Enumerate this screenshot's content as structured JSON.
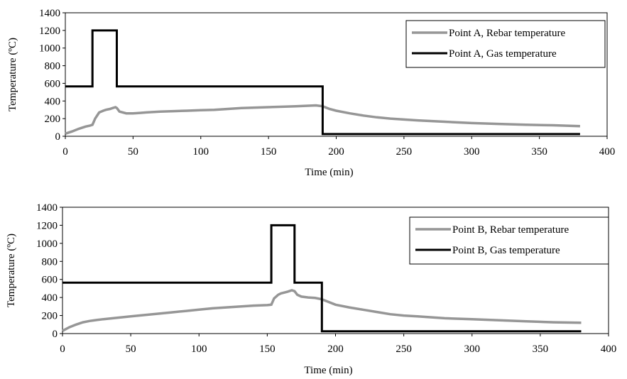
{
  "chart_data": [
    {
      "type": "line",
      "xlabel": "Time (min)",
      "ylabel": "Temperature (ºC)",
      "xlim": [
        0,
        400
      ],
      "ylim": [
        0,
        1400
      ],
      "xticks": [
        0,
        50,
        100,
        150,
        200,
        250,
        300,
        350,
        400
      ],
      "yticks": [
        0,
        200,
        400,
        600,
        800,
        1000,
        1200,
        1400
      ],
      "grid": false,
      "legend_position": "top-right",
      "series": [
        {
          "name": "Point A, Rebar temperature",
          "color": "#969696",
          "x": [
            0,
            5,
            10,
            15,
            18,
            20,
            22,
            25,
            28,
            30,
            33,
            35,
            37,
            38,
            40,
            45,
            50,
            55,
            60,
            70,
            80,
            90,
            100,
            110,
            120,
            130,
            140,
            150,
            160,
            170,
            185,
            190,
            195,
            200,
            210,
            220,
            230,
            240,
            250,
            260,
            280,
            300,
            320,
            340,
            360,
            380
          ],
          "y": [
            30,
            55,
            85,
            110,
            120,
            130,
            200,
            270,
            290,
            300,
            310,
            320,
            330,
            320,
            280,
            260,
            260,
            265,
            270,
            280,
            285,
            290,
            295,
            300,
            310,
            320,
            325,
            330,
            335,
            340,
            350,
            340,
            310,
            290,
            260,
            235,
            215,
            200,
            190,
            180,
            165,
            150,
            140,
            130,
            125,
            115
          ]
        },
        {
          "name": "Point A, Gas temperature",
          "color": "#000000",
          "x": [
            0,
            20,
            20,
            38,
            38,
            190,
            190,
            380
          ],
          "y": [
            565,
            565,
            1200,
            1200,
            565,
            565,
            25,
            25
          ]
        }
      ]
    },
    {
      "type": "line",
      "xlabel": "Time (min)",
      "ylabel": "Temperature (ºC)",
      "xlim": [
        0,
        400
      ],
      "ylim": [
        0,
        1400
      ],
      "xticks": [
        0,
        50,
        100,
        150,
        200,
        250,
        300,
        350,
        400
      ],
      "yticks": [
        0,
        200,
        400,
        600,
        800,
        1000,
        1200,
        1400
      ],
      "grid": false,
      "legend_position": "top-right",
      "series": [
        {
          "name": "Point B, Rebar temperature",
          "color": "#969696",
          "x": [
            0,
            5,
            10,
            15,
            20,
            25,
            30,
            40,
            50,
            60,
            70,
            80,
            90,
            100,
            110,
            120,
            130,
            140,
            150,
            153,
            155,
            158,
            160,
            165,
            168,
            170,
            172,
            175,
            180,
            185,
            190,
            195,
            200,
            210,
            220,
            230,
            240,
            250,
            260,
            280,
            300,
            320,
            340,
            360,
            380
          ],
          "y": [
            30,
            70,
            100,
            125,
            140,
            150,
            160,
            175,
            190,
            205,
            220,
            235,
            250,
            265,
            280,
            290,
            300,
            310,
            315,
            320,
            390,
            430,
            445,
            465,
            480,
            470,
            430,
            410,
            400,
            395,
            380,
            350,
            320,
            290,
            265,
            240,
            215,
            200,
            190,
            170,
            160,
            148,
            135,
            125,
            120
          ]
        },
        {
          "name": "Point B, Gas temperature",
          "color": "#000000",
          "x": [
            0,
            153,
            153,
            170,
            170,
            190,
            190,
            380
          ],
          "y": [
            565,
            565,
            1200,
            1200,
            565,
            565,
            25,
            25
          ]
        }
      ]
    }
  ]
}
